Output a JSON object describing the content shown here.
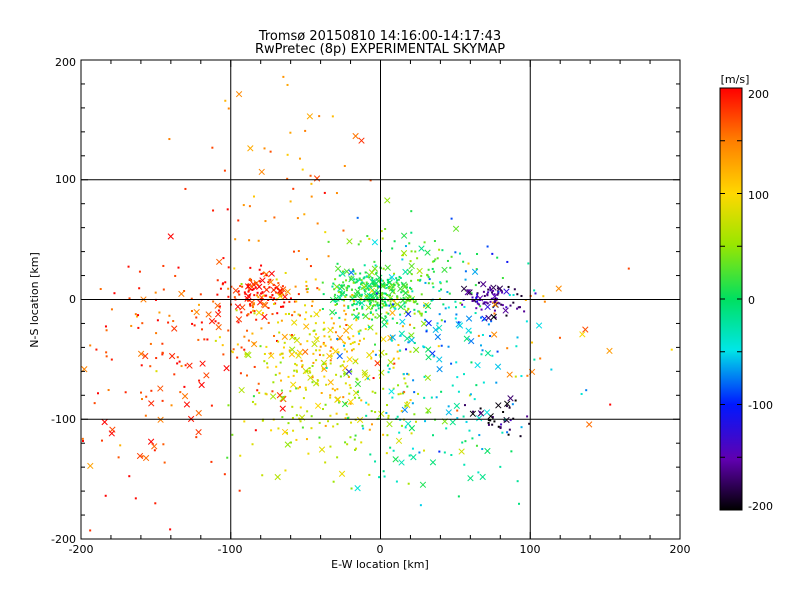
{
  "chart_data": {
    "type": "scatter",
    "title": "Tromsø 20150810 14:16:00-14:17:43",
    "subtitle": "RwPretec (8p) EXPERIMENTAL SKYMAP",
    "xlabel": "E-W location [km]",
    "ylabel": "N-S location [km]",
    "xlim": [
      -200,
      200
    ],
    "ylim": [
      -200,
      200
    ],
    "x_ticks": [
      "-200",
      "-100",
      "0",
      "100",
      "200"
    ],
    "y_ticks": [
      "-200",
      "-100",
      "0",
      "100",
      "200"
    ],
    "grid_lines": [
      -100,
      0,
      100
    ],
    "grid": true,
    "markers": "dots and x crosses, colored by velocity",
    "colorbar": {
      "unit_label": "[m/s]",
      "range": [
        -200,
        200
      ],
      "ticks": [
        "200",
        "100",
        "0",
        "-100",
        "-200"
      ],
      "colormap": "black-purple-blue-cyan-green-yellow-red"
    },
    "clusters": [
      {
        "x": -82,
        "y": 5,
        "sx": 12,
        "sy": 10,
        "v": 185,
        "n": 120
      },
      {
        "x": -120,
        "y": -25,
        "sx": 40,
        "sy": 35,
        "v": 175,
        "n": 140
      },
      {
        "x": -40,
        "y": -40,
        "sx": 28,
        "sy": 32,
        "v": 100,
        "n": 230
      },
      {
        "x": -30,
        "y": -90,
        "sx": 35,
        "sy": 28,
        "v": 60,
        "n": 170
      },
      {
        "x": -5,
        "y": 5,
        "sx": 14,
        "sy": 10,
        "v": 10,
        "n": 260
      },
      {
        "x": 20,
        "y": 15,
        "sx": 25,
        "sy": 22,
        "v": 20,
        "n": 140
      },
      {
        "x": 40,
        "y": -30,
        "sx": 35,
        "sy": 35,
        "v": -60,
        "n": 150
      },
      {
        "x": 75,
        "y": 0,
        "sx": 9,
        "sy": 7,
        "v": -160,
        "n": 80
      },
      {
        "x": 78,
        "y": -100,
        "sx": 10,
        "sy": 8,
        "v": -185,
        "n": 35
      },
      {
        "x": -60,
        "y": 100,
        "sx": 40,
        "sy": 40,
        "v": 140,
        "n": 55
      },
      {
        "x": 40,
        "y": -120,
        "sx": 30,
        "sy": 25,
        "v": -30,
        "n": 60
      },
      {
        "x": -150,
        "y": -100,
        "sx": 30,
        "sy": 50,
        "v": 170,
        "n": 50
      },
      {
        "x": 100,
        "y": -40,
        "sx": 40,
        "sy": 40,
        "v": 150,
        "n": 30
      }
    ]
  }
}
